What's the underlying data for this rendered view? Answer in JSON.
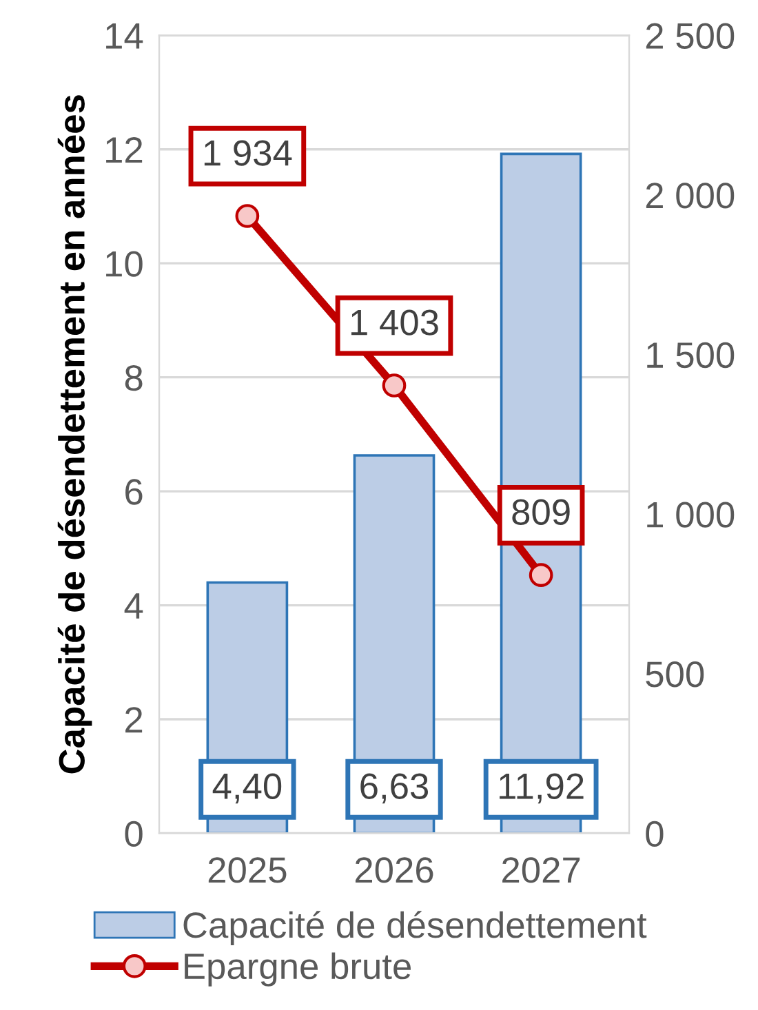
{
  "chart_data": {
    "type": "bar",
    "ylabel": "Capacité de désendettement en années",
    "categories": [
      "2025",
      "2026",
      "2027"
    ],
    "series": [
      {
        "name": "Capacité de désendettement",
        "color": "#bccde6",
        "values": [
          4.4,
          6.63,
          11.92
        ],
        "value_labels": [
          "4,40",
          "6,63",
          "11,92"
        ]
      },
      {
        "name": "Epargne brute",
        "type": "line",
        "axis": "y2",
        "color": "#c00000",
        "marker": "circle",
        "values": [
          1934,
          1403,
          809
        ],
        "value_labels": [
          "1 934",
          "1 403",
          "809"
        ]
      }
    ],
    "ylim": [
      0,
      14
    ],
    "yticks": [
      0,
      2,
      4,
      6,
      8,
      10,
      12,
      14
    ],
    "y2lim": [
      0,
      2500
    ],
    "y2ticks": [
      0,
      {
        "value": 500,
        "label": "500"
      },
      {
        "value": 1000,
        "label": "1 000"
      },
      {
        "value": 1500,
        "label": "1 500"
      },
      {
        "value": 2000,
        "label": "2 000"
      },
      {
        "value": 2500,
        "label": "2 500"
      }
    ],
    "grid": "y",
    "legend": "bottom"
  }
}
